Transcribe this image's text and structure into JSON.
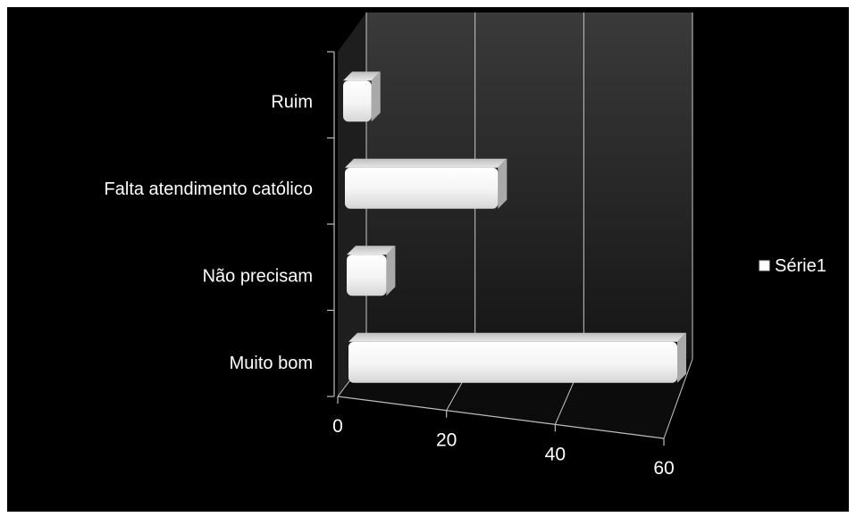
{
  "chart_data": {
    "type": "bar",
    "orientation": "horizontal",
    "three_d": true,
    "categories": [
      "Muito bom",
      "Não precisam",
      "Falta atendimento católico",
      "Ruim"
    ],
    "series": [
      {
        "name": "Série1",
        "values": [
          58,
          7,
          27,
          5
        ]
      }
    ],
    "x_ticks": [
      "0",
      "20",
      "40",
      "60"
    ],
    "xlim": [
      0,
      60
    ],
    "grid": true,
    "legend_position": "right",
    "colors": {
      "background": "#000000",
      "bar_fill": "#ffffff",
      "back_wall": "#2b2b2b",
      "gridline": "#c8c8c8"
    }
  }
}
